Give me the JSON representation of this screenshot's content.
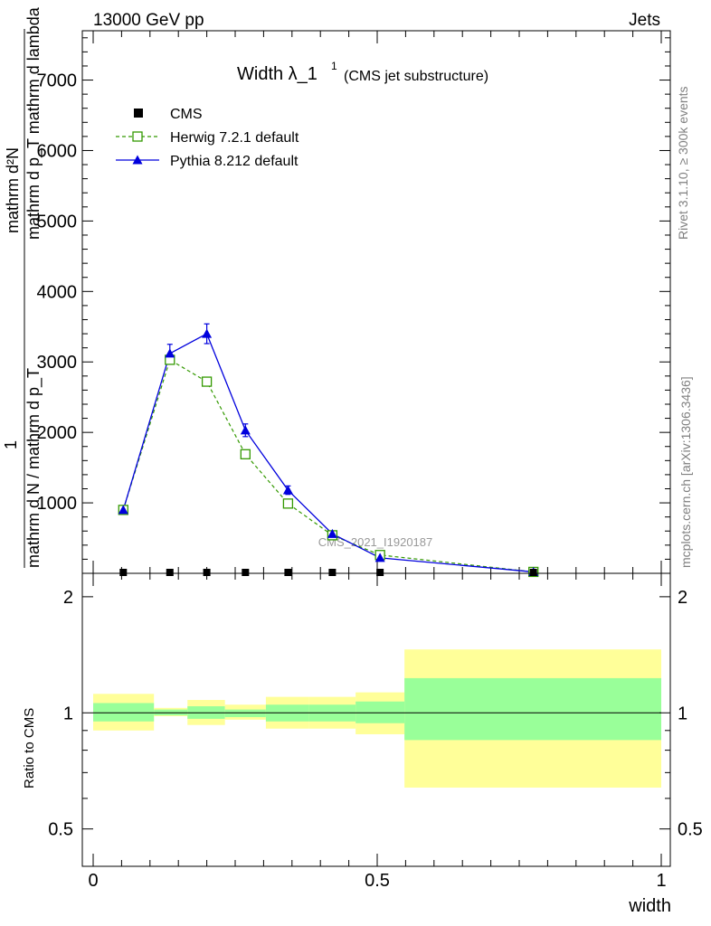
{
  "header": {
    "energy": "13000 GeV pp",
    "process": "Jets",
    "rivet": "Rivet 3.1.10, ≥ 300k events",
    "source": "mcplots.cern.ch [arXiv:1306.3436]",
    "watermark": "CMS_2021_I1920187"
  },
  "title": {
    "main": "Width λ_1",
    "superscript": "1",
    "sub": "(CMS jet substructure)"
  },
  "legend": [
    {
      "label": "CMS",
      "color": "#000000",
      "marker": "square-filled"
    },
    {
      "label": "Herwig 7.2.1 default",
      "color": "#339900",
      "marker": "square-open",
      "dash": true
    },
    {
      "label": "Pythia 8.212 default",
      "color": "#0000dd",
      "marker": "triangle-filled",
      "dash": false
    }
  ],
  "ylabel_main": {
    "numerator": "mathrm d²N",
    "numerator_tail": "mathrm d p_T mathrm d lambda",
    "prefix": "1",
    "denominator": "mathrm d N / mathrm d p_T"
  },
  "ylabel_ratio": "Ratio to CMS",
  "xlabel": "width",
  "chart_data": [
    {
      "type": "line",
      "panel": "main",
      "xlim": [
        -0.02,
        1.0
      ],
      "ylim": [
        0,
        7700
      ],
      "yticks": [
        1000,
        2000,
        3000,
        4000,
        5000,
        6000,
        7000
      ],
      "ytick_labels": [
        "1000",
        "2000",
        "3000",
        "4000",
        "5000",
        "6000",
        "7000"
      ],
      "x": [
        0.053,
        0.135,
        0.2,
        0.268,
        0.343,
        0.421,
        0.505,
        0.775
      ],
      "series": [
        {
          "name": "CMS",
          "values": [
            5,
            5,
            5,
            5,
            5,
            5,
            5,
            5
          ]
        },
        {
          "name": "Herwig 7.2.1 default",
          "values": [
            900,
            3030,
            2720,
            1690,
            990,
            540,
            260,
            20
          ]
        },
        {
          "name": "Pythia 8.212 default",
          "values": [
            900,
            3120,
            3400,
            2030,
            1180,
            560,
            220,
            20
          ],
          "errors": [
            40,
            130,
            140,
            90,
            60,
            40,
            25,
            10
          ]
        }
      ]
    },
    {
      "type": "area",
      "panel": "ratio",
      "ylim": [
        0.4,
        2.3
      ],
      "yscale": "log",
      "yticks": [
        0.5,
        1,
        2
      ],
      "ytick_labels": [
        "0.5",
        "1",
        "2"
      ],
      "xticks": [
        0,
        0.5,
        1
      ],
      "xtick_labels": [
        "0",
        "0.5",
        "1"
      ],
      "bins": [
        {
          "x0": 0.0,
          "x1": 0.107,
          "inner": [
            0.95,
            1.06
          ],
          "outer": [
            0.9,
            1.12
          ]
        },
        {
          "x0": 0.107,
          "x1": 0.166,
          "inner": [
            0.985,
            1.02
          ],
          "outer": [
            0.98,
            1.03
          ]
        },
        {
          "x0": 0.166,
          "x1": 0.232,
          "inner": [
            0.965,
            1.04
          ],
          "outer": [
            0.93,
            1.08
          ]
        },
        {
          "x0": 0.232,
          "x1": 0.304,
          "inner": [
            0.975,
            1.02
          ],
          "outer": [
            0.96,
            1.05
          ]
        },
        {
          "x0": 0.304,
          "x1": 0.38,
          "inner": [
            0.95,
            1.05
          ],
          "outer": [
            0.91,
            1.1
          ]
        },
        {
          "x0": 0.38,
          "x1": 0.462,
          "inner": [
            0.95,
            1.05
          ],
          "outer": [
            0.91,
            1.1
          ]
        },
        {
          "x0": 0.462,
          "x1": 0.548,
          "inner": [
            0.94,
            1.07
          ],
          "outer": [
            0.88,
            1.13
          ]
        },
        {
          "x0": 0.548,
          "x1": 1.0,
          "inner": [
            0.85,
            1.23
          ],
          "outer": [
            0.64,
            1.46
          ]
        }
      ],
      "reference": 1,
      "inner_color": "#99ff99",
      "outer_color": "#ffff99"
    }
  ]
}
